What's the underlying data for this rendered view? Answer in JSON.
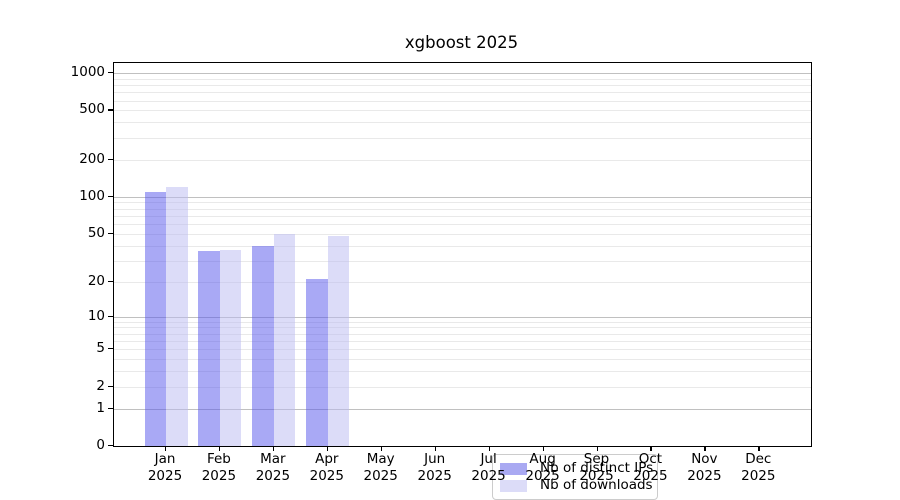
{
  "chart_data": {
    "type": "bar",
    "title": "xgboost 2025",
    "categories": [
      "Jan 2025",
      "Feb 2025",
      "Mar 2025",
      "Apr 2025",
      "May 2025",
      "Jun 2025",
      "Jul 2025",
      "Aug 2025",
      "Sep 2025",
      "Oct 2025",
      "Nov 2025",
      "Dec 2025"
    ],
    "series": [
      {
        "name": "Nb of distinct IPs",
        "values": [
          110,
          36,
          40,
          21,
          0,
          0,
          0,
          0,
          0,
          0,
          0,
          0
        ],
        "legend_color": "#a9a9f2",
        "fill": "rgba(83,83,235,0.5)"
      },
      {
        "name": "Nb of downloads",
        "values": [
          120,
          37,
          50,
          48,
          0,
          0,
          0,
          0,
          0,
          0,
          0,
          0
        ],
        "legend_color": "#dcdcf8",
        "fill": "rgba(185,185,241,0.5)"
      }
    ],
    "xlabel": "",
    "ylabel": "",
    "yscale": "symlog-ln(1+x)",
    "ylim": [
      0,
      1000
    ],
    "yticks": [
      0,
      1,
      2,
      5,
      10,
      20,
      50,
      100,
      200,
      500,
      1000
    ],
    "major_gridlines": [
      1,
      10,
      100,
      1000
    ],
    "minor_gridlines": [
      2,
      3,
      4,
      5,
      6,
      7,
      8,
      9,
      20,
      30,
      40,
      50,
      60,
      70,
      80,
      90,
      200,
      300,
      400,
      500,
      600,
      700,
      800,
      900
    ],
    "grid": true,
    "legend_position": "lower center-left",
    "colors": {
      "axis": "#000000",
      "major_grid": "#c0c0c0",
      "minor_grid": "#e9e9e9",
      "legend_border": "#cccccc",
      "background": "#ffffff"
    }
  }
}
